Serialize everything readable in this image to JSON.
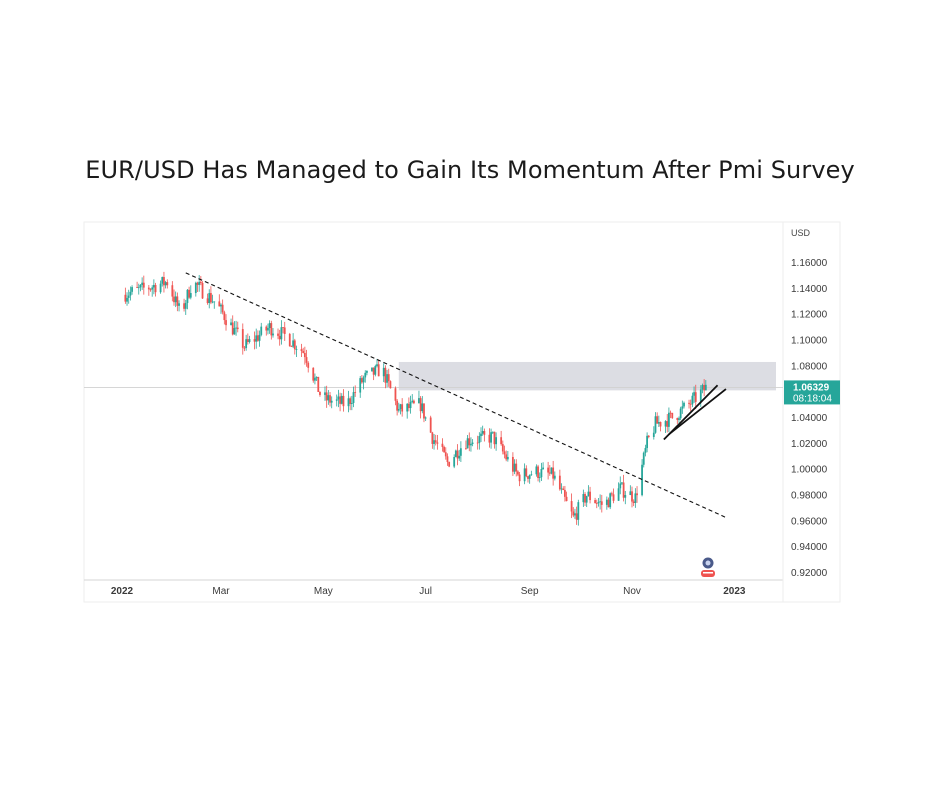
{
  "headline": "EUR/USD Has Managed to Gain Its Momentum After Pmi Survey",
  "chart_data": {
    "type": "candlestick",
    "currency_label": "USD",
    "y_ticks": [
      "1.16000",
      "1.14000",
      "1.12000",
      "1.10000",
      "1.08000",
      "1.06000",
      "1.04000",
      "1.02000",
      "1.00000",
      "0.98000",
      "0.96000",
      "0.94000",
      "0.92000"
    ],
    "ylim": [
      0.92,
      1.16
    ],
    "x_ticks": [
      {
        "label": "2022",
        "date": "2022-01-01"
      },
      {
        "label": "Mar",
        "date": "2022-03-01"
      },
      {
        "label": "May",
        "date": "2022-05-01"
      },
      {
        "label": "Jul",
        "date": "2022-07-01"
      },
      {
        "label": "Sep",
        "date": "2022-09-01"
      },
      {
        "label": "Nov",
        "date": "2022-11-01"
      },
      {
        "label": "2023",
        "date": "2023-01-01"
      }
    ],
    "x_range": [
      "2022-01-01",
      "2023-01-31"
    ],
    "last_price": "1.06329",
    "countdown": "08:18:04",
    "price_path": [
      [
        "2022-01-01",
        1.135
      ],
      [
        "2022-01-15",
        1.14
      ],
      [
        "2022-01-28",
        1.145
      ],
      [
        "2022-02-05",
        1.12
      ],
      [
        "2022-02-12",
        1.145
      ],
      [
        "2022-02-25",
        1.13
      ],
      [
        "2022-03-05",
        1.115
      ],
      [
        "2022-03-15",
        1.095
      ],
      [
        "2022-03-30",
        1.11
      ],
      [
        "2022-04-10",
        1.102
      ],
      [
        "2022-04-20",
        1.09
      ],
      [
        "2022-04-30",
        1.055
      ],
      [
        "2022-05-15",
        1.05
      ],
      [
        "2022-05-25",
        1.07
      ],
      [
        "2022-06-05",
        1.078
      ],
      [
        "2022-06-15",
        1.045
      ],
      [
        "2022-06-28",
        1.05
      ],
      [
        "2022-07-05",
        1.025
      ],
      [
        "2022-07-14",
        1.005
      ],
      [
        "2022-07-25",
        1.022
      ],
      [
        "2022-08-10",
        1.025
      ],
      [
        "2022-08-25",
        0.995
      ],
      [
        "2022-09-05",
        0.998
      ],
      [
        "2022-09-15",
        0.995
      ],
      [
        "2022-09-27",
        0.962
      ],
      [
        "2022-10-05",
        0.98
      ],
      [
        "2022-10-15",
        0.972
      ],
      [
        "2022-10-25",
        0.985
      ],
      [
        "2022-11-03",
        0.978
      ],
      [
        "2022-11-10",
        1.02
      ],
      [
        "2022-11-15",
        1.035
      ],
      [
        "2022-11-25",
        1.04
      ],
      [
        "2022-12-05",
        1.05
      ],
      [
        "2022-12-15",
        1.063
      ]
    ],
    "resistance_zone": {
      "date_range": [
        "2022-06-15",
        "2023-01-31"
      ],
      "price_range": [
        1.061,
        1.083
      ]
    },
    "reference_line": 1.06329,
    "downtrend_line": {
      "from": [
        "2022-02-08",
        1.152
      ],
      "to": [
        "2022-12-28",
        0.962
      ]
    },
    "uptrend_lines": [
      {
        "from": [
          "2022-11-20",
          1.023
        ],
        "to": [
          "2022-12-22",
          1.065
        ]
      },
      {
        "from": [
          "2022-11-23",
          1.027
        ],
        "to": [
          "2022-12-27",
          1.062
        ]
      }
    ],
    "up_color": "#26a69a",
    "down_color": "#ef5350"
  }
}
